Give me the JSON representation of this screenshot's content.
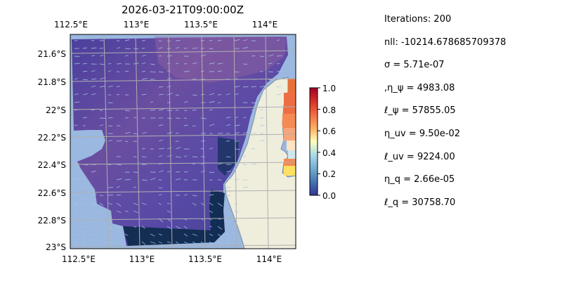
{
  "map": {
    "title": "2026-03-21T09:00:00Z",
    "lon_ticks": [
      "112.5°E",
      "113°E",
      "113.5°E",
      "114°E"
    ],
    "lat_ticks": [
      "21.6°S",
      "21.8°S",
      "22°S",
      "22.2°S",
      "22.4°S",
      "22.6°S",
      "22.8°S",
      "23°S"
    ],
    "colors": {
      "ocean": "#9ab8e0",
      "land": "#efeddc",
      "field_main": "#5b4aa8",
      "field_dark": "#0c2a4a",
      "grid": "#b0b0b0",
      "arrows": "#a9c9e4"
    }
  },
  "colorbar": {
    "ticks": [
      "0.0",
      "0.2",
      "0.4",
      "0.6",
      "0.8",
      "1.0"
    ],
    "range": [
      0.0,
      1.0
    ],
    "colors": [
      "#313695",
      "#4575b4",
      "#74add1",
      "#abd9e9",
      "#ffffbf",
      "#fdae61",
      "#f46d43",
      "#d73027",
      "#a50026"
    ]
  },
  "params": {
    "lines": [
      "Iterations: 200",
      "nll: -10214.678685709378",
      "σ = 5.71e-07",
      ",η_ψ = 4983.08",
      "ℓ_ψ = 57855.05",
      "η_uv = 9.50e-02",
      "ℓ_uv = 9224.00",
      "η_q = 2.66e-05",
      "ℓ_q = 30758.70"
    ]
  }
}
